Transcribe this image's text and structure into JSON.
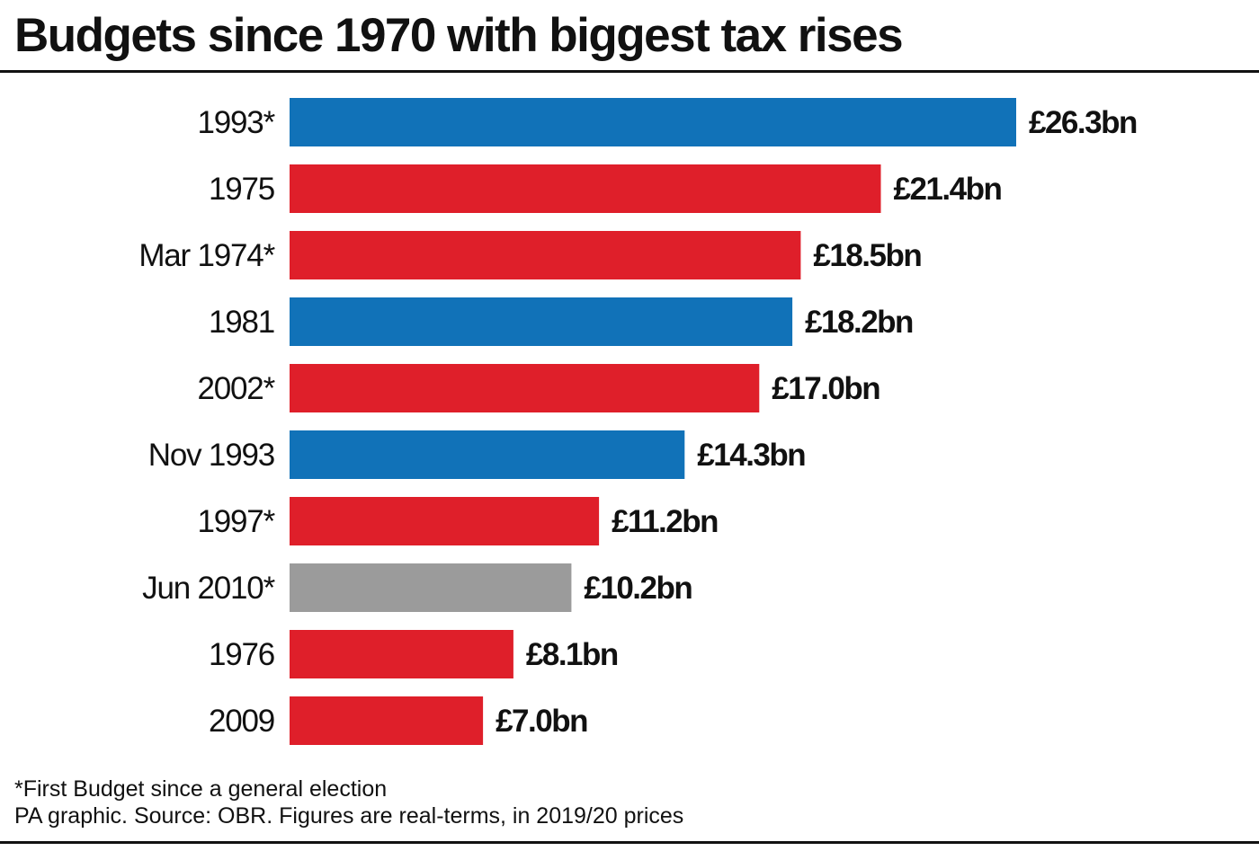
{
  "title": "Budgets since 1970 with biggest tax rises",
  "footnote": "*First Budget since a general election",
  "source": "PA graphic. Source: OBR. Figures are real-terms, in 2019/20 prices",
  "colors": {
    "blue": "#1172b8",
    "red": "#df1f2a",
    "grey": "#9b9b9b",
    "text": "#111111",
    "rule": "#111111"
  },
  "chart_data": {
    "type": "bar",
    "orientation": "horizontal",
    "title": "Budgets since 1970 with biggest tax rises",
    "xlabel": "",
    "ylabel": "",
    "unit": "£bn",
    "xlim": [
      0,
      26.3
    ],
    "grid": false,
    "legend": "none",
    "categories": [
      "1993*",
      "1975",
      "Mar 1974*",
      "1981",
      "2002*",
      "Nov 1993",
      "1997*",
      "Jun 2010*",
      "1976",
      "2009"
    ],
    "values": [
      26.3,
      21.4,
      18.5,
      18.2,
      17.0,
      14.3,
      11.2,
      10.2,
      8.1,
      7.0
    ],
    "value_labels": [
      "£26.3bn",
      "£21.4bn",
      "£18.5bn",
      "£18.2bn",
      "£17.0bn",
      "£14.3bn",
      "£11.2bn",
      "£10.2bn",
      "£8.1bn",
      "£7.0bn"
    ],
    "bar_colors": [
      "#1172b8",
      "#df1f2a",
      "#df1f2a",
      "#1172b8",
      "#df1f2a",
      "#1172b8",
      "#df1f2a",
      "#9b9b9b",
      "#df1f2a",
      "#df1f2a"
    ]
  }
}
